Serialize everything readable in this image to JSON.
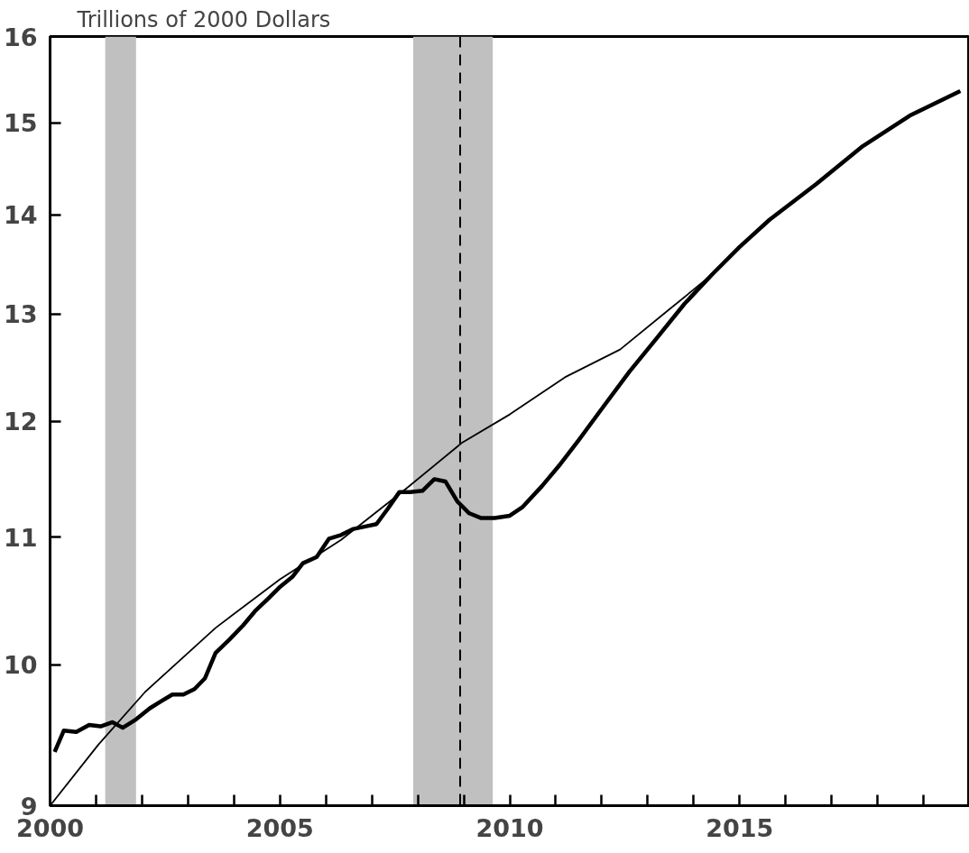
{
  "chart_data": {
    "type": "line",
    "ylabel": "Trillions of 2000 Dollars",
    "log": "y",
    "grid": false,
    "marker": "none",
    "xlim": [
      2000,
      2020
    ],
    "ylim": [
      9,
      16
    ],
    "xticks": [
      2000,
      {
        "value": 2001,
        "label": null
      },
      {
        "value": 2002,
        "label": null
      },
      {
        "value": 2003,
        "label": null
      },
      {
        "value": 2004,
        "label": null
      },
      2005,
      {
        "value": 2006,
        "label": null
      },
      {
        "value": 2007,
        "label": null
      },
      {
        "value": 2008,
        "label": null
      },
      {
        "value": 2009,
        "label": null
      },
      2010,
      {
        "value": 2011,
        "label": null
      },
      {
        "value": 2012,
        "label": null
      },
      {
        "value": 2013,
        "label": null
      },
      {
        "value": 2014,
        "label": null
      },
      2015,
      {
        "value": 2016,
        "label": null
      },
      {
        "value": 2017,
        "label": null
      },
      {
        "value": 2018,
        "label": null
      },
      {
        "value": 2019,
        "label": null
      }
    ],
    "yticks": [
      9,
      10,
      11,
      12,
      13,
      14,
      15,
      16
    ],
    "bands": [
      {
        "axis": "x",
        "from": 2001.2,
        "to": 2001.87,
        "color": "#c0c0c0"
      },
      {
        "axis": "x",
        "from": 2007.9,
        "to": 2009.63,
        "color": "#c0c0c0"
      }
    ],
    "ref_lines": [
      {
        "axis": "x",
        "value": 2008.92,
        "color": "#000000",
        "line_style": "dashed"
      }
    ],
    "series": [
      {
        "color": "#000000",
        "line_style": "solid",
        "x": [
          2000.1,
          2000.3,
          2000.57,
          2000.85,
          2001.1,
          2001.36,
          2001.58,
          2001.87,
          2002.17,
          2002.41,
          2002.66,
          2002.9,
          2003.14,
          2003.37,
          2003.6,
          2003.9,
          2004.2,
          2004.46,
          2004.75,
          2005.0,
          2005.27,
          2005.5,
          2005.8,
          2006.07,
          2006.33,
          2006.6,
          2006.86,
          2007.1,
          2007.35,
          2007.6,
          2007.83,
          2008.1,
          2008.36,
          2008.6,
          2008.86,
          2009.12,
          2009.38,
          2009.67,
          2010.0,
          2010.27,
          2010.7,
          2011.1,
          2011.5,
          2012.0,
          2012.6,
          2013.2,
          2013.8,
          2014.4,
          2015.0,
          2015.65,
          2016.67,
          2017.68,
          2018.7,
          2019.8
        ],
        "values": [
          9.37,
          9.52,
          9.51,
          9.56,
          9.55,
          9.58,
          9.54,
          9.6,
          9.68,
          9.73,
          9.78,
          9.78,
          9.82,
          9.9,
          10.09,
          10.19,
          10.3,
          10.41,
          10.51,
          10.6,
          10.68,
          10.79,
          10.84,
          10.99,
          11.02,
          11.07,
          11.09,
          11.11,
          11.24,
          11.38,
          11.38,
          11.39,
          11.49,
          11.47,
          11.3,
          11.2,
          11.16,
          11.16,
          11.18,
          11.25,
          11.43,
          11.62,
          11.83,
          12.11,
          12.45,
          12.77,
          13.1,
          13.39,
          13.67,
          13.95,
          14.33,
          14.74,
          15.08,
          15.36
        ]
      },
      {
        "color": "#000000",
        "line_style": "solid",
        "x": [
          2000.0,
          2001.05,
          2002.07,
          2003.6,
          2005.0,
          2006.33,
          2007.75,
          2008.97,
          2010.0,
          2011.2,
          2012.4,
          2013.4,
          2014.4,
          2015.0,
          2015.65,
          2016.67,
          2017.68,
          2018.7,
          2019.8
        ],
        "values": [
          9.0,
          9.42,
          9.8,
          10.28,
          10.66,
          10.98,
          11.41,
          11.81,
          12.06,
          12.4,
          12.66,
          13.02,
          13.39,
          13.67,
          13.95,
          14.33,
          14.74,
          15.08,
          15.36
        ]
      }
    ]
  }
}
